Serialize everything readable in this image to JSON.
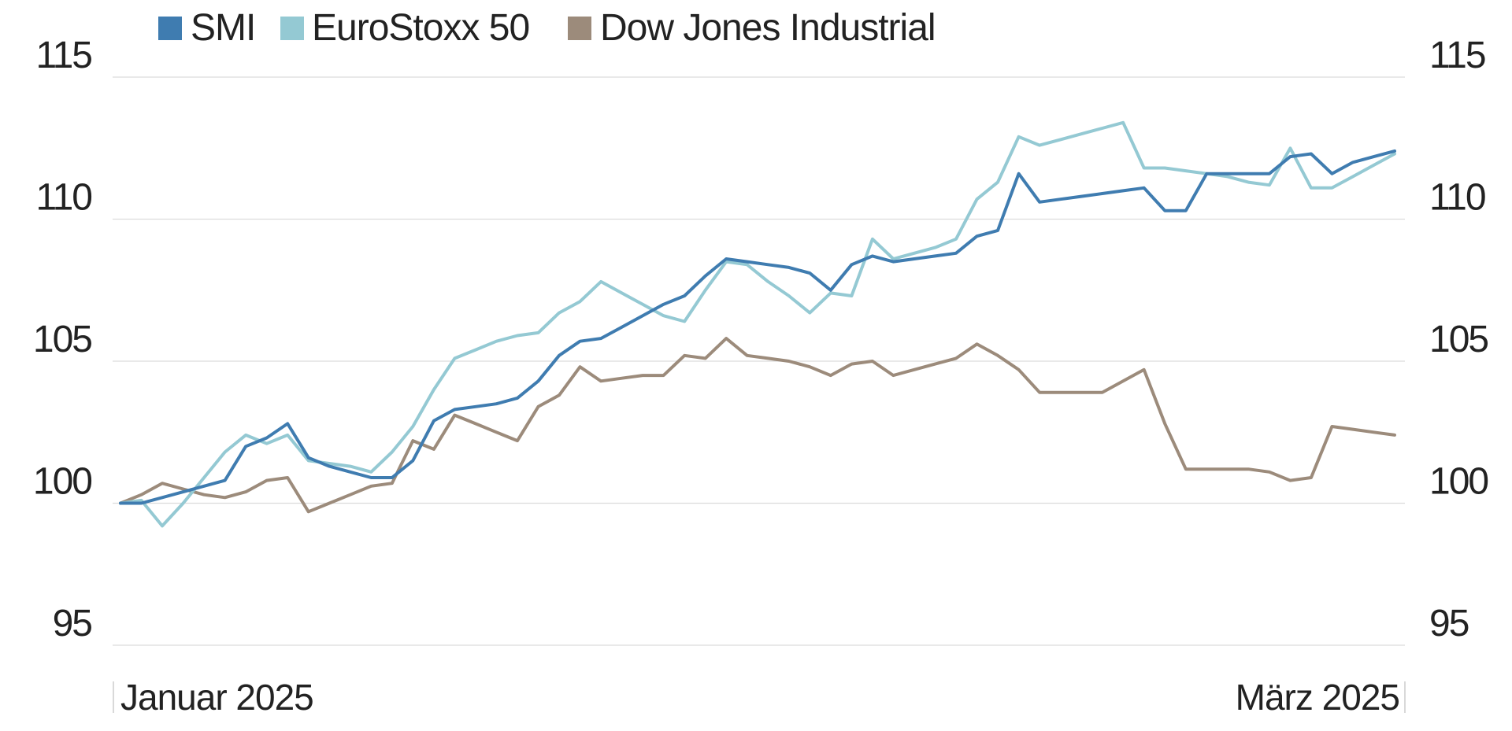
{
  "chart_data": {
    "type": "line",
    "title": "",
    "xlabel": "",
    "ylabel": "",
    "x_start_label": "Januar 2025",
    "x_end_label": "März 2025",
    "ylim": [
      95,
      115
    ],
    "yticks": [
      95,
      100,
      105,
      110,
      115
    ],
    "ytick_labels": [
      "95",
      "100",
      "105",
      "110",
      "115"
    ],
    "grid": true,
    "legend_position": "top",
    "n_points": 62,
    "series": [
      {
        "name": "SMI",
        "color": "#3f7cb0",
        "values": [
          100.0,
          100.0,
          100.2,
          100.4,
          100.6,
          100.8,
          102.0,
          102.3,
          102.8,
          101.6,
          101.3,
          101.1,
          100.9,
          100.9,
          101.5,
          102.9,
          103.3,
          103.4,
          103.5,
          103.7,
          104.3,
          105.2,
          105.7,
          105.8,
          106.2,
          106.6,
          107.0,
          107.3,
          108.0,
          108.6,
          108.5,
          108.4,
          108.3,
          108.1,
          107.5,
          108.4,
          108.7,
          108.5,
          108.6,
          108.7,
          108.8,
          109.4,
          109.6,
          111.6,
          110.6,
          110.7,
          110.8,
          110.9,
          111.0,
          111.1,
          110.3,
          110.3,
          111.6,
          111.6,
          111.6,
          111.6,
          112.2,
          112.3,
          111.6,
          112.0,
          112.2,
          112.4
        ]
      },
      {
        "name": "EuroStoxx 50",
        "color": "#94c9d3",
        "values": [
          100.0,
          100.1,
          99.2,
          100.0,
          100.9,
          101.8,
          102.4,
          102.1,
          102.4,
          101.5,
          101.4,
          101.3,
          101.1,
          101.8,
          102.7,
          104.0,
          105.1,
          105.4,
          105.7,
          105.9,
          106.0,
          106.7,
          107.1,
          107.8,
          107.4,
          107.0,
          106.6,
          106.4,
          107.5,
          108.5,
          108.4,
          107.8,
          107.3,
          106.7,
          107.4,
          107.3,
          109.3,
          108.6,
          108.8,
          109.0,
          109.3,
          110.7,
          111.3,
          112.9,
          112.6,
          112.8,
          113.0,
          113.2,
          113.4,
          111.8,
          111.8,
          111.7,
          111.6,
          111.5,
          111.3,
          111.2,
          112.5,
          111.1,
          111.1,
          111.5,
          111.9,
          112.3
        ]
      },
      {
        "name": "Dow Jones Industrial",
        "color": "#9c8b7b",
        "values": [
          100.0,
          100.3,
          100.7,
          100.5,
          100.3,
          100.2,
          100.4,
          100.8,
          100.9,
          99.7,
          100.0,
          100.3,
          100.6,
          100.7,
          102.2,
          101.9,
          103.1,
          102.8,
          102.5,
          102.2,
          103.4,
          103.8,
          104.8,
          104.3,
          104.4,
          104.5,
          104.5,
          105.2,
          105.1,
          105.8,
          105.2,
          105.1,
          105.0,
          104.8,
          104.5,
          104.9,
          105.0,
          104.5,
          104.7,
          104.9,
          105.1,
          105.6,
          105.2,
          104.7,
          103.9,
          103.9,
          103.9,
          103.9,
          104.3,
          104.7,
          102.8,
          101.2,
          101.2,
          101.2,
          101.2,
          101.1,
          100.8,
          100.9,
          102.7,
          102.6,
          102.5,
          102.4
        ]
      }
    ]
  }
}
